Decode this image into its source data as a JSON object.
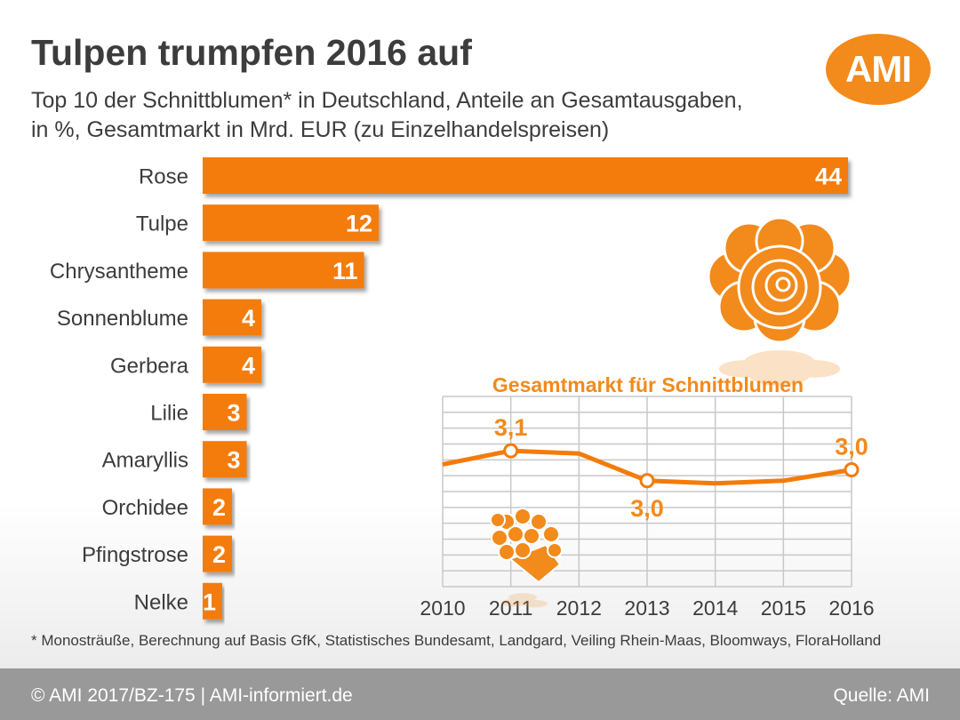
{
  "header": {
    "title": "Tulpen trumpfen 2016 auf",
    "subtitle_line1": "Top 10 der Schnittblumen* in Deutschland, Anteile an Gesamtausgaben,",
    "subtitle_line2": "in %, Gesamtmarkt in Mrd. EUR (zu Einzelhandelspreisen)"
  },
  "logo": {
    "text": "AMI"
  },
  "colors": {
    "accent": "#f28a1c",
    "bar": "#f47b0a",
    "text": "#3c3c3c",
    "grid": "#bfbfbf",
    "footer": "#999999"
  },
  "icons": {
    "rose": "rose-icon",
    "bouquet": "bouquet-icon"
  },
  "chart_data": [
    {
      "type": "bar",
      "orientation": "horizontal",
      "categories": [
        "Rose",
        "Tulpe",
        "Chrysantheme",
        "Sonnenblume",
        "Gerbera",
        "Lilie",
        "Amaryllis",
        "Orchidee",
        "Pfingstrose",
        "Nelke"
      ],
      "values": [
        44,
        12,
        11,
        4,
        4,
        3,
        3,
        2,
        2,
        1
      ],
      "data_labels": [
        "44",
        "12",
        "11",
        "4",
        "4",
        "3",
        "3",
        "2",
        "2",
        "1"
      ]
    },
    {
      "type": "line",
      "title": "Gesamtmarkt für Schnittblumen",
      "x": [
        "2010",
        "2011",
        "2012",
        "2013",
        "2014",
        "2015",
        "2016"
      ],
      "values": [
        3.05,
        3.1,
        3.09,
        2.99,
        2.98,
        2.99,
        3.03
      ],
      "data_labels": [
        {
          "x": "2011",
          "text": "3,1",
          "position": "above"
        },
        {
          "x": "2013",
          "text": "3,0",
          "position": "below"
        },
        {
          "x": "2016",
          "text": "3,0",
          "position": "above"
        }
      ],
      "grid": true
    }
  ],
  "footnote": "* Monosträuße, Berechnung auf Basis GfK, Statistisches Bundesamt, Landgard, Veiling Rhein-Maas, Bloomways, FloraHolland",
  "footer": {
    "copyright": "© AMI 2017/BZ-175 | AMI-informiert.de",
    "source": "Quelle: AMI"
  }
}
